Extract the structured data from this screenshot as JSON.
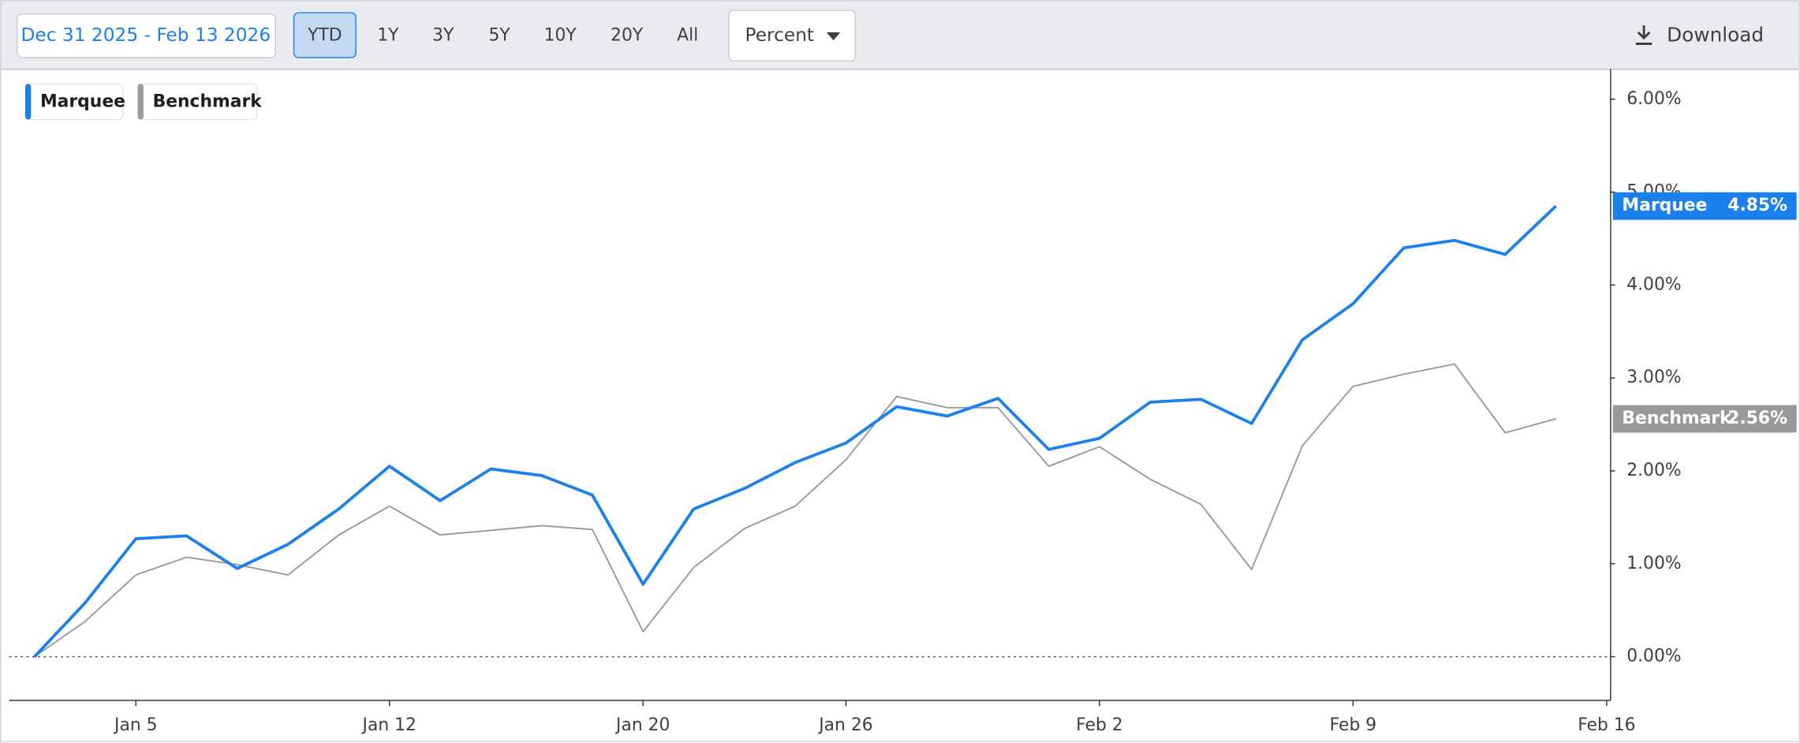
{
  "toolbar": {
    "date_range": "Dec 31 2025 - Feb 13 2026",
    "ranges": [
      "YTD",
      "1Y",
      "3Y",
      "5Y",
      "10Y",
      "20Y",
      "All"
    ],
    "mode": "Percent",
    "download": "Download"
  },
  "chart_data": {
    "type": "line",
    "categories": [
      null,
      null,
      "Jan 5",
      null,
      null,
      null,
      null,
      "Jan 12",
      null,
      null,
      null,
      null,
      "Jan 20",
      null,
      null,
      null,
      "Jan 26",
      null,
      null,
      null,
      null,
      "Feb 2",
      null,
      null,
      null,
      null,
      "Feb 9",
      null,
      null,
      null,
      null,
      "Feb 16"
    ],
    "series": [
      {
        "name": "Marquee",
        "color": "#1a80ee",
        "values": [
          0,
          0.58,
          1.27,
          1.3,
          0.95,
          1.21,
          1.59,
          2.05,
          1.68,
          2.02,
          1.95,
          1.74,
          0.78,
          1.59,
          1.81,
          2.09,
          2.3,
          2.69,
          2.59,
          2.78,
          2.23,
          2.35,
          2.74,
          2.77,
          2.51,
          3.41,
          3.8,
          4.4,
          4.48,
          4.33,
          4.85,
          null
        ],
        "value_labels": [
          null,
          null,
          null,
          null,
          null,
          null,
          null,
          null,
          null,
          null,
          null,
          null,
          null,
          null,
          null,
          null,
          null,
          null,
          null,
          null,
          null,
          null,
          null,
          null,
          null,
          null,
          null,
          null,
          null,
          null,
          "4.85%",
          null
        ]
      },
      {
        "name": "Benchmark",
        "color": "#999999",
        "values": [
          0,
          0.38,
          0.88,
          1.07,
          0.99,
          0.88,
          1.31,
          1.62,
          1.31,
          1.36,
          1.41,
          1.37,
          0.27,
          0.96,
          1.38,
          1.62,
          2.12,
          2.8,
          2.68,
          2.68,
          2.05,
          2.26,
          1.91,
          1.64,
          0.94,
          2.27,
          2.91,
          3.04,
          3.15,
          2.41,
          2.56,
          null
        ],
        "value_labels": [
          null,
          null,
          null,
          null,
          null,
          null,
          null,
          null,
          null,
          null,
          null,
          null,
          null,
          null,
          null,
          null,
          null,
          null,
          null,
          null,
          null,
          null,
          null,
          null,
          null,
          null,
          null,
          null,
          null,
          null,
          "2.56%",
          null
        ]
      }
    ],
    "ylim": [
      -0.47,
      6.3
    ],
    "yticks": [
      {
        "value": 0,
        "label": "0.00%"
      },
      {
        "value": 1,
        "label": "1.00%"
      },
      {
        "value": 2,
        "label": "2.00%"
      },
      {
        "value": 3,
        "label": "3.00%"
      },
      {
        "value": 4,
        "label": "4.00%"
      },
      {
        "value": 5,
        "label": "5.00%"
      },
      {
        "value": 6,
        "label": "6.00%"
      }
    ],
    "zero_line": true
  }
}
